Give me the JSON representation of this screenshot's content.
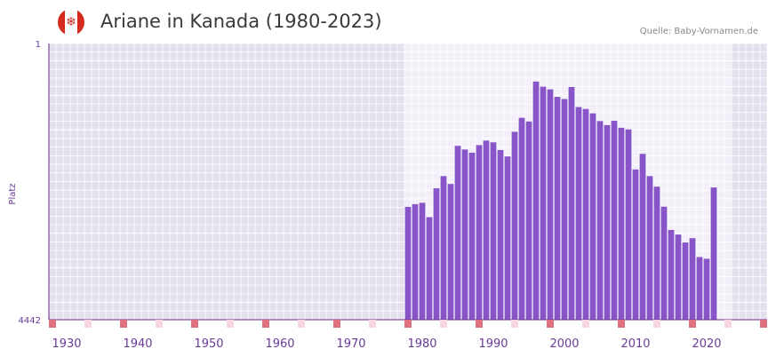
{
  "header": {
    "title": "Ariane in Kanada (1980-2023)",
    "source": "Quelle: Baby-Vornamen.de",
    "flag_icon": "canada-flag-icon"
  },
  "colors": {
    "bar": "#8855c8",
    "plot_bg_outside": "#e4e0ee",
    "plot_bg_inside": "#f2eff8",
    "grid": "#ffffff",
    "axis": "#6a2a8a",
    "tick_text": "#6a3a9a",
    "marker_strong": "#e07080",
    "marker_light": "#f6d6de"
  },
  "chart_data": {
    "type": "bar",
    "title": "Ariane in Kanada (1980-2023)",
    "xlabel": "",
    "ylabel": "Platz",
    "xlim": [
      1928,
      2029
    ],
    "ylim": [
      4442,
      1
    ],
    "y_axis_inverted": true,
    "ytick_labels": [
      "1",
      "4442"
    ],
    "xtick_labels": [
      "1930",
      "1940",
      "1950",
      "1960",
      "1970",
      "1980",
      "1990",
      "2000",
      "2010",
      "2020"
    ],
    "highlight_range": [
      1978,
      2023
    ],
    "series": [
      {
        "name": "Platz",
        "x": [
          1978,
          1979,
          1980,
          1981,
          1982,
          1983,
          1984,
          1985,
          1986,
          1987,
          1988,
          1989,
          1990,
          1991,
          1992,
          1993,
          1994,
          1995,
          1996,
          1997,
          1998,
          1999,
          2000,
          2001,
          2002,
          2003,
          2004,
          2005,
          2006,
          2007,
          2008,
          2009,
          2010,
          2011,
          2012,
          2013,
          2014,
          2015,
          2016,
          2017,
          2018,
          2019,
          2020,
          2021
        ],
        "values": [
          2628,
          2584,
          2562,
          2793,
          2329,
          2133,
          2260,
          1647,
          1705,
          1756,
          1634,
          1562,
          1590,
          1713,
          1817,
          1421,
          1196,
          1254,
          613,
          695,
          738,
          859,
          893,
          700,
          1023,
          1053,
          1124,
          1248,
          1313,
          1244,
          1356,
          1382,
          2026,
          1775,
          2133,
          2303,
          2625,
          2999,
          3073,
          3200,
          3131,
          3435,
          3462,
          2316
        ]
      }
    ]
  }
}
